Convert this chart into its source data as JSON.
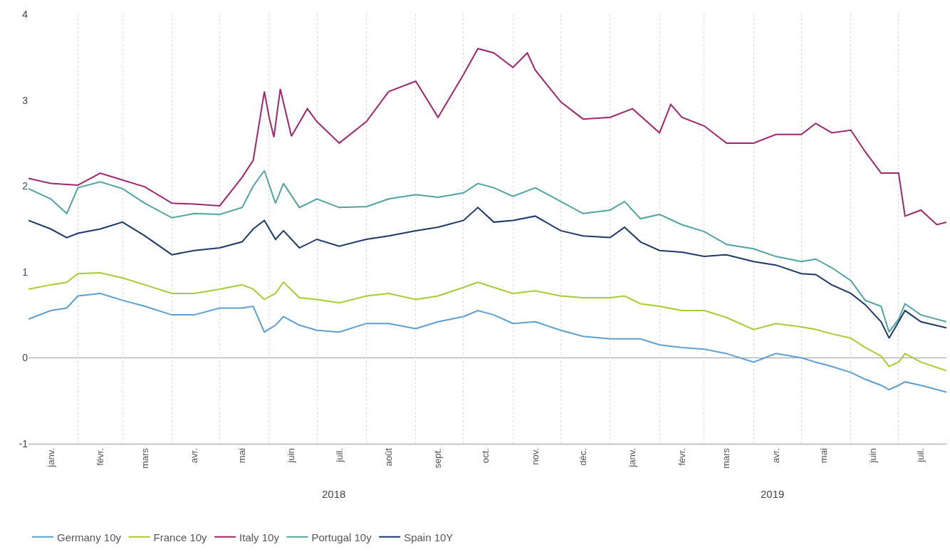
{
  "chart_data": {
    "type": "line",
    "x": [
      "2018-01-01",
      "2018-01-15",
      "2018-01-25",
      "2018-02-01",
      "2018-02-15",
      "2018-03-01",
      "2018-03-15",
      "2018-04-01",
      "2018-04-15",
      "2018-05-01",
      "2018-05-15",
      "2018-05-22",
      "2018-05-29",
      "2018-06-05",
      "2018-06-10",
      "2018-06-20",
      "2018-07-01",
      "2018-07-15",
      "2018-08-01",
      "2018-08-15",
      "2018-09-01",
      "2018-09-15",
      "2018-10-01",
      "2018-10-10",
      "2018-10-20",
      "2018-11-01",
      "2018-11-15",
      "2018-12-01",
      "2018-12-15",
      "2019-01-01",
      "2019-01-10",
      "2019-01-20",
      "2019-02-01",
      "2019-02-15",
      "2019-03-01",
      "2019-03-15",
      "2019-04-01",
      "2019-04-15",
      "2019-05-01",
      "2019-05-10",
      "2019-05-20",
      "2019-06-01",
      "2019-06-10",
      "2019-06-20",
      "2019-06-25",
      "2019-07-01",
      "2019-07-05",
      "2019-07-15",
      "2019-07-31"
    ],
    "series": [
      {
        "name": "Germany 10y",
        "color": "#5b9fd3",
        "values": [
          0.45,
          0.55,
          0.58,
          0.72,
          0.75,
          0.67,
          0.6,
          0.5,
          0.5,
          0.58,
          0.58,
          0.6,
          0.3,
          0.38,
          0.48,
          0.38,
          0.32,
          0.3,
          0.4,
          0.4,
          0.34,
          0.42,
          0.48,
          0.55,
          0.5,
          0.4,
          0.42,
          0.32,
          0.25,
          0.22,
          0.22,
          0.22,
          0.15,
          0.12,
          0.1,
          0.05,
          -0.05,
          0.05,
          0.0,
          -0.05,
          -0.1,
          -0.17,
          -0.25,
          -0.32,
          -0.37,
          -0.32,
          -0.28,
          -0.32,
          -0.4
        ]
      },
      {
        "name": "France 10y",
        "color": "#a6cc33",
        "values": [
          0.8,
          0.85,
          0.88,
          0.98,
          0.99,
          0.93,
          0.85,
          0.75,
          0.75,
          0.8,
          0.85,
          0.8,
          0.68,
          0.75,
          0.88,
          0.7,
          0.68,
          0.64,
          0.72,
          0.75,
          0.68,
          0.72,
          0.82,
          0.88,
          0.82,
          0.75,
          0.78,
          0.72,
          0.7,
          0.7,
          0.72,
          0.63,
          0.6,
          0.55,
          0.55,
          0.47,
          0.33,
          0.4,
          0.36,
          0.33,
          0.28,
          0.23,
          0.12,
          0.02,
          -0.1,
          -0.05,
          0.05,
          -0.05,
          -0.15
        ]
      },
      {
        "name": "Italy 10y",
        "color": "#a0256f",
        "x": [
          "2018-01-01",
          "2018-01-15",
          "2018-02-01",
          "2018-02-15",
          "2018-03-01",
          "2018-03-15",
          "2018-04-01",
          "2018-04-15",
          "2018-05-01",
          "2018-05-15",
          "2018-05-22",
          "2018-05-29",
          "2018-06-01",
          "2018-06-04",
          "2018-06-08",
          "2018-06-15",
          "2018-06-25",
          "2018-07-01",
          "2018-07-15",
          "2018-08-01",
          "2018-08-15",
          "2018-09-01",
          "2018-09-15",
          "2018-10-01",
          "2018-10-10",
          "2018-10-20",
          "2018-11-01",
          "2018-11-10",
          "2018-11-15",
          "2018-12-01",
          "2018-12-15",
          "2019-01-01",
          "2019-01-15",
          "2019-02-01",
          "2019-02-08",
          "2019-02-15",
          "2019-03-01",
          "2019-03-15",
          "2019-04-01",
          "2019-04-15",
          "2019-05-01",
          "2019-05-10",
          "2019-05-20",
          "2019-06-01",
          "2019-06-10",
          "2019-06-20",
          "2019-07-01",
          "2019-07-05",
          "2019-07-15",
          "2019-07-25",
          "2019-07-31"
        ],
        "values": [
          2.09,
          2.03,
          2.01,
          2.15,
          2.07,
          1.99,
          1.8,
          1.79,
          1.77,
          2.1,
          2.3,
          3.1,
          2.8,
          2.57,
          3.13,
          2.58,
          2.9,
          2.75,
          2.5,
          2.75,
          3.1,
          3.22,
          2.8,
          3.3,
          3.6,
          3.55,
          3.38,
          3.55,
          3.35,
          2.98,
          2.78,
          2.8,
          2.9,
          2.62,
          2.95,
          2.8,
          2.7,
          2.5,
          2.5,
          2.6,
          2.6,
          2.73,
          2.62,
          2.65,
          2.4,
          2.15,
          2.15,
          1.65,
          1.72,
          1.55,
          1.58
        ]
      },
      {
        "name": "Portugal 10y",
        "color": "#4fa3a5",
        "values": [
          1.97,
          1.85,
          1.68,
          1.98,
          2.05,
          1.97,
          1.8,
          1.63,
          1.68,
          1.67,
          1.75,
          2.0,
          2.18,
          1.8,
          2.03,
          1.75,
          1.85,
          1.75,
          1.76,
          1.85,
          1.9,
          1.87,
          1.92,
          2.03,
          1.98,
          1.88,
          1.98,
          1.82,
          1.68,
          1.72,
          1.82,
          1.62,
          1.67,
          1.55,
          1.47,
          1.32,
          1.27,
          1.18,
          1.12,
          1.15,
          1.05,
          0.9,
          0.67,
          0.6,
          0.3,
          0.45,
          0.63,
          0.5,
          0.42
        ]
      },
      {
        "name": "Spain 10Y",
        "color": "#1b3a6b",
        "values": [
          1.6,
          1.5,
          1.4,
          1.45,
          1.5,
          1.58,
          1.42,
          1.2,
          1.25,
          1.28,
          1.35,
          1.5,
          1.6,
          1.38,
          1.48,
          1.28,
          1.38,
          1.3,
          1.38,
          1.42,
          1.48,
          1.52,
          1.6,
          1.75,
          1.58,
          1.6,
          1.65,
          1.48,
          1.42,
          1.4,
          1.52,
          1.35,
          1.25,
          1.23,
          1.18,
          1.2,
          1.12,
          1.08,
          0.98,
          0.97,
          0.85,
          0.75,
          0.62,
          0.42,
          0.23,
          0.42,
          0.55,
          0.42,
          0.35
        ]
      }
    ],
    "xlim": [
      "2018-01-01",
      "2019-07-31"
    ],
    "xticks": [
      {
        "value": "2018-01-15",
        "label": "janv."
      },
      {
        "value": "2018-02-15",
        "label": "févr."
      },
      {
        "value": "2018-03-15",
        "label": "mars"
      },
      {
        "value": "2018-04-15",
        "label": "avr."
      },
      {
        "value": "2018-05-15",
        "label": "mai"
      },
      {
        "value": "2018-06-15",
        "label": "juin"
      },
      {
        "value": "2018-07-15",
        "label": "juil."
      },
      {
        "value": "2018-08-15",
        "label": "août"
      },
      {
        "value": "2018-09-15",
        "label": "sept."
      },
      {
        "value": "2018-10-15",
        "label": "oct."
      },
      {
        "value": "2018-11-15",
        "label": "nov."
      },
      {
        "value": "2018-12-15",
        "label": "déc."
      },
      {
        "value": "2019-01-15",
        "label": "janv."
      },
      {
        "value": "2019-02-15",
        "label": "févr."
      },
      {
        "value": "2019-03-15",
        "label": "mars"
      },
      {
        "value": "2019-04-15",
        "label": "avr."
      },
      {
        "value": "2019-05-15",
        "label": "mai"
      },
      {
        "value": "2019-06-15",
        "label": "juin"
      },
      {
        "value": "2019-07-15",
        "label": "juil."
      }
    ],
    "ylim": [
      -1,
      4
    ],
    "yticks": [
      -1,
      0,
      1,
      2,
      3,
      4
    ],
    "grid": "x",
    "legend": "bottom",
    "marker": "none",
    "line_style": "solid",
    "ref_lines": [
      {
        "axis": "y",
        "value": 0,
        "color": "#999999"
      }
    ],
    "annotations": [
      "2018",
      "2019"
    ]
  }
}
